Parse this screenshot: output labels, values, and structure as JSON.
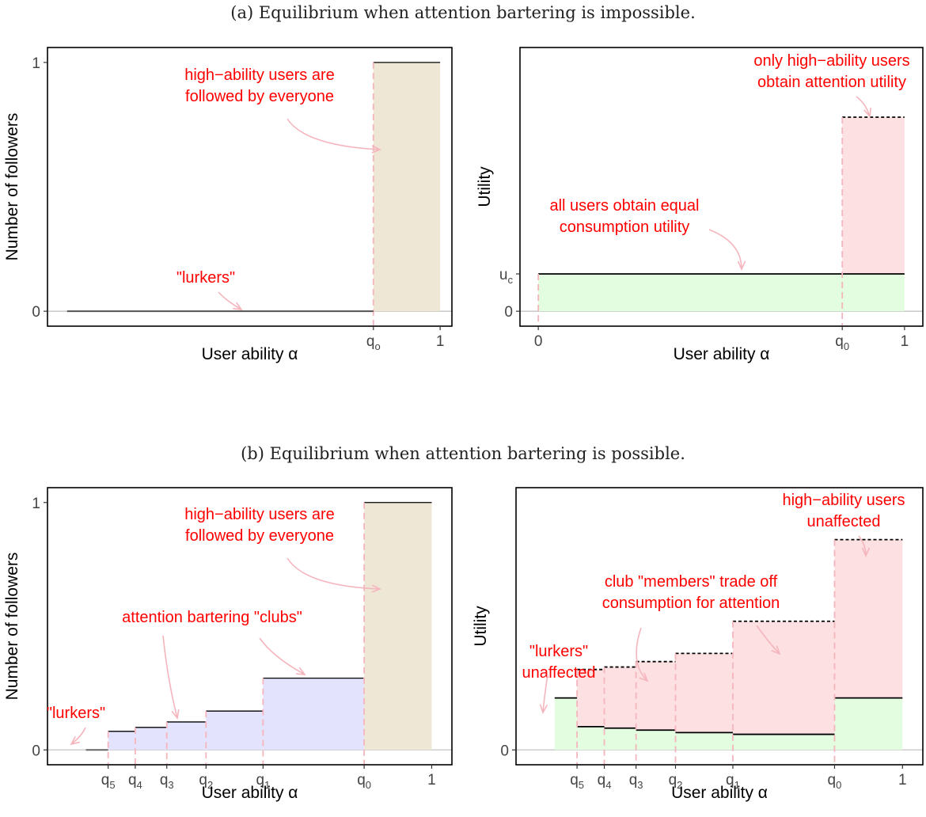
{
  "captions": {
    "a": "(a) Equilibrium when attention bartering is impossible.",
    "b": "(b) Equilibrium when attention bartering is possible."
  },
  "colors": {
    "annotation": "#ff0000",
    "arrow": "#f5b5bd",
    "dashed_guide": "#f5b5bd",
    "tan_fill": "#efe7d6",
    "blue_fill": "#e4e3fd",
    "pink_fill": "#fde0e2",
    "green_fill": "#e2fde0",
    "zero_line": "#cccccc"
  },
  "chart_data": [
    {
      "id": "a_left",
      "type": "area",
      "ylabel": "Number of followers",
      "xlabel": "User ability α",
      "x_ticks": [
        {
          "label": "q",
          "sub": "o",
          "x": 0.83
        },
        {
          "label": "1",
          "sub": "",
          "x": 1.0
        }
      ],
      "y_ticks": [
        {
          "label": "0",
          "y": 0
        },
        {
          "label": "1",
          "y": 1
        }
      ],
      "xlim": [
        0.0,
        1.03
      ],
      "ylim": [
        -0.06,
        1.06
      ],
      "lurkers": {
        "x": [
          0.05,
          0.83
        ],
        "y": 0
      },
      "high_ability": {
        "x": [
          0.83,
          1.0
        ],
        "y": 1
      },
      "annotations": [
        {
          "lines": [
            "high−ability users are",
            "followed by everyone"
          ]
        },
        {
          "lines": [
            "\"lurkers\""
          ]
        }
      ]
    },
    {
      "id": "a_right",
      "type": "area",
      "ylabel": "Utility",
      "xlabel": "User ability α",
      "x_ticks": [
        {
          "label": "0",
          "sub": "",
          "x": 0.0
        },
        {
          "label": "q",
          "sub": "0",
          "x": 0.83
        },
        {
          "label": "1",
          "sub": "",
          "x": 1.0
        }
      ],
      "y_ticks": [
        {
          "label": "0",
          "y": 0
        },
        {
          "label": "u",
          "sub": "c",
          "y": 0.15
        }
      ],
      "xlim": [
        -0.05,
        1.05
      ],
      "ylim": [
        -0.06,
        1.06
      ],
      "consumption_utility": 0.15,
      "total_utility_high": 0.78,
      "q0": 0.83,
      "annotations": [
        {
          "lines": [
            "only high−ability users",
            "obtain attention utility"
          ]
        },
        {
          "lines": [
            "all users obtain equal",
            "consumption utility"
          ]
        }
      ]
    },
    {
      "id": "b_left",
      "type": "area",
      "ylabel": "Number of followers",
      "xlabel": "User ability α",
      "x_ticks": [
        {
          "label": "q",
          "sub": "5",
          "x": 0.1
        },
        {
          "label": "q",
          "sub": "4",
          "x": 0.167
        },
        {
          "label": "q",
          "sub": "3",
          "x": 0.245
        },
        {
          "label": "q",
          "sub": "2",
          "x": 0.342
        },
        {
          "label": "q",
          "sub": "1",
          "x": 0.483
        },
        {
          "label": "q",
          "sub": "0",
          "x": 0.733
        },
        {
          "label": "1",
          "sub": "",
          "x": 0.9
        }
      ],
      "y_ticks": [
        {
          "label": "0",
          "y": 0
        },
        {
          "label": "1",
          "y": 1
        }
      ],
      "xlim": [
        -0.05,
        0.95
      ],
      "ylim": [
        -0.06,
        1.06
      ],
      "lurkers": {
        "x": [
          0.045,
          0.1
        ],
        "y": 0
      },
      "clubs": [
        {
          "x0": 0.1,
          "x1": 0.167,
          "y": 0.075
        },
        {
          "x0": 0.167,
          "x1": 0.245,
          "y": 0.091
        },
        {
          "x0": 0.245,
          "x1": 0.342,
          "y": 0.113
        },
        {
          "x0": 0.342,
          "x1": 0.483,
          "y": 0.157
        },
        {
          "x0": 0.483,
          "x1": 0.733,
          "y": 0.29
        }
      ],
      "high_ability": {
        "x": [
          0.733,
          0.9
        ],
        "y": 1
      },
      "annotations": [
        {
          "lines": [
            "high−ability users are",
            "followed by everyone"
          ]
        },
        {
          "lines": [
            "attention bartering \"clubs\""
          ]
        },
        {
          "lines": [
            "\"lurkers\""
          ]
        }
      ]
    },
    {
      "id": "b_right",
      "type": "area",
      "ylabel": "Utility",
      "xlabel": "User ability α",
      "x_ticks": [
        {
          "label": "q",
          "sub": "5",
          "x": 0.1
        },
        {
          "label": "q",
          "sub": "4",
          "x": 0.167
        },
        {
          "label": "q",
          "sub": "3",
          "x": 0.245
        },
        {
          "label": "q",
          "sub": "2",
          "x": 0.342
        },
        {
          "label": "q",
          "sub": "1",
          "x": 0.483
        },
        {
          "label": "q",
          "sub": "0",
          "x": 0.733
        },
        {
          "label": "1",
          "sub": "",
          "x": 0.9
        }
      ],
      "y_ticks": [
        {
          "label": "0",
          "y": 0
        }
      ],
      "xlim": [
        -0.05,
        0.95
      ],
      "ylim": [
        -0.06,
        1.06
      ],
      "lurker_utility": {
        "x0": 0.045,
        "x1": 0.1,
        "y": 0.21
      },
      "clubs": [
        {
          "x0": 0.1,
          "x1": 0.167,
          "consumption": 0.094,
          "total": 0.325
        },
        {
          "x0": 0.167,
          "x1": 0.245,
          "consumption": 0.088,
          "total": 0.335
        },
        {
          "x0": 0.245,
          "x1": 0.342,
          "consumption": 0.08,
          "total": 0.357
        },
        {
          "x0": 0.342,
          "x1": 0.483,
          "consumption": 0.07,
          "total": 0.39
        },
        {
          "x0": 0.483,
          "x1": 0.733,
          "consumption": 0.063,
          "total": 0.52
        }
      ],
      "high_ability": {
        "x0": 0.733,
        "x1": 0.9,
        "consumption": 0.21,
        "total": 0.85
      },
      "annotations": [
        {
          "lines": [
            "high−ability users",
            "unaffected"
          ]
        },
        {
          "lines": [
            "club \"members\" trade off",
            "consumption for attention"
          ]
        },
        {
          "lines": [
            "\"lurkers\"",
            "unaffected"
          ]
        }
      ]
    }
  ]
}
